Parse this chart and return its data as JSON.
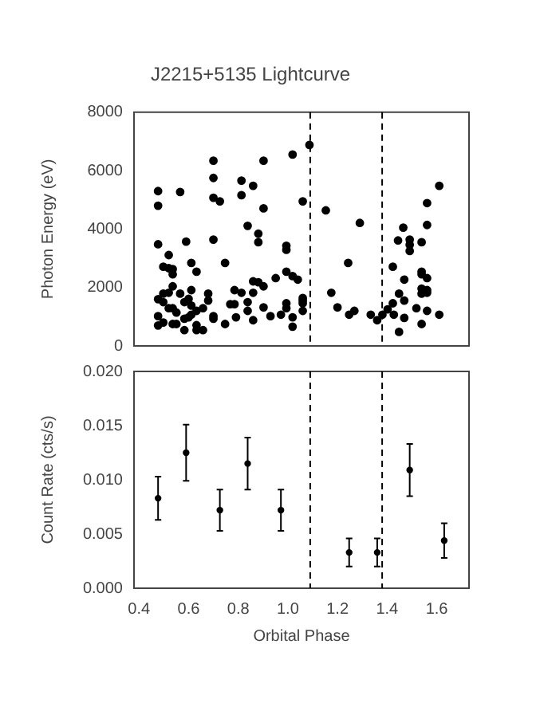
{
  "chart_data": [
    {
      "type": "scatter",
      "title": "J2215+5135 Lightcurve",
      "ylabel": "Photon Energy (eV)",
      "xlim": [
        0.38,
        1.73
      ],
      "xticks": [
        0.4,
        0.6,
        0.8,
        1.0,
        1.2,
        1.4,
        1.6
      ],
      "ylim": [
        0,
        8000
      ],
      "yticks": [
        0,
        2000,
        4000,
        6000,
        8000
      ],
      "tick_labels": "y",
      "grid": false,
      "legend": false,
      "marker": "circle",
      "ref_lines": [
        {
          "axis": "x",
          "value": 1.09,
          "color": "#000000",
          "line_style": "dashed"
        },
        {
          "axis": "x",
          "value": 1.38,
          "color": "#000000",
          "line_style": "dashed"
        }
      ],
      "series": [
        {
          "color": "#000000",
          "x": [
            0.477,
            0.477,
            0.477,
            0.477,
            0.477,
            0.477,
            0.498,
            0.498,
            0.498,
            0.498,
            0.52,
            0.52,
            0.52,
            0.52,
            0.536,
            0.536,
            0.536,
            0.536,
            0.536,
            0.551,
            0.551,
            0.566,
            0.566,
            0.583,
            0.583,
            0.583,
            0.59,
            0.6,
            0.6,
            0.611,
            0.611,
            0.611,
            0.611,
            0.632,
            0.632,
            0.632,
            0.632,
            0.658,
            0.658,
            0.679,
            0.679,
            0.7,
            0.7,
            0.7,
            0.7,
            0.7,
            0.7,
            0.726,
            0.747,
            0.747,
            0.768,
            0.785,
            0.785,
            0.791,
            0.813,
            0.813,
            0.813,
            0.838,
            0.838,
            0.838,
            0.86,
            0.86,
            0.86,
            0.86,
            0.881,
            0.881,
            0.881,
            0.902,
            0.902,
            0.902,
            0.902,
            0.93,
            0.951,
            0.972,
            0.994,
            0.994,
            0.994,
            0.994,
            0.994,
            1.019,
            1.019,
            1.019,
            1.019,
            1.04,
            1.06,
            1.06,
            1.06,
            1.06,
            1.06,
            1.087,
            1.153,
            1.175,
            1.2,
            1.243,
            1.247,
            1.268,
            1.29,
            1.334,
            1.36,
            1.381,
            1.402,
            1.423,
            1.423,
            1.427,
            1.444,
            1.448,
            1.448,
            1.465,
            1.469,
            1.469,
            1.469,
            1.491,
            1.491,
            1.491,
            1.518,
            1.539,
            1.539,
            1.539,
            1.539,
            1.539,
            1.539,
            1.561,
            1.561,
            1.561,
            1.561,
            1.561,
            1.561,
            1.61,
            1.61
          ],
          "values": [
            5300,
            4800,
            3480,
            1600,
            1020,
            700,
            2710,
            1790,
            1500,
            800,
            3110,
            2660,
            1820,
            1290,
            2630,
            2450,
            2040,
            1290,
            750,
            1140,
            750,
            5270,
            1790,
            1500,
            930,
            540,
            3570,
            980,
            1610,
            2840,
            1910,
            1380,
            1070,
            2540,
            1200,
            710,
            540,
            540,
            1290,
            1550,
            1790,
            6340,
            5750,
            5070,
            3640,
            1020,
            930,
            4950,
            2840,
            750,
            1430,
            1430,
            1910,
            980,
            5660,
            5160,
            1820,
            4110,
            1500,
            1200,
            5480,
            2210,
            1820,
            880,
            3840,
            3550,
            2180,
            6340,
            4710,
            2040,
            1320,
            1020,
            2320,
            1070,
            3430,
            3290,
            2540,
            1460,
            1290,
            6550,
            2390,
            980,
            660,
            2270,
            4950,
            1640,
            1550,
            1460,
            1200,
            6880,
            4640,
            1820,
            1320,
            2840,
            1070,
            1200,
            4210,
            1070,
            880,
            1070,
            1250,
            2710,
            1460,
            1070,
            3610,
            1790,
            480,
            4050,
            2270,
            1550,
            960,
            3640,
            3460,
            3250,
            1290,
            3550,
            2540,
            2450,
            1960,
            1790,
            750,
            4890,
            4140,
            2320,
            1910,
            1820,
            1200,
            5480,
            1070
          ]
        }
      ]
    },
    {
      "type": "scatter",
      "xlabel": "Orbital Phase",
      "ylabel": "Count Rate (cts/s)",
      "xlim": [
        0.38,
        1.73
      ],
      "xticks": [
        0.4,
        0.6,
        0.8,
        {
          "value": 1,
          "label": "1.0"
        },
        1.2,
        1.4,
        1.6
      ],
      "ylim": [
        0,
        0.02
      ],
      "marker": "circle",
      "yticks": [
        {
          "value": 0,
          "label": "0.000"
        },
        {
          "value": 0.005,
          "label": "0.005"
        },
        {
          "value": 0.01,
          "label": "0.010"
        },
        {
          "value": 0.015,
          "label": "0.015"
        },
        {
          "value": 0.02,
          "label": "0.020"
        }
      ],
      "grid": false,
      "legend": false,
      "ref_lines": [
        {
          "axis": "x",
          "value": 1.09,
          "color": "#000000",
          "line_style": "dashed"
        },
        {
          "axis": "x",
          "value": 1.38,
          "color": "#000000",
          "line_style": "dashed"
        }
      ],
      "series": [
        {
          "color": "#000000",
          "x": [
            0.477,
            0.59,
            0.726,
            0.838,
            0.972,
            1.247,
            1.36,
            1.491,
            1.63
          ],
          "values": [
            0.0083,
            0.0125,
            0.0072,
            0.0115,
            0.0072,
            0.0033,
            0.0033,
            0.0109,
            0.0044
          ],
          "errors": [
            0.002,
            0.0026,
            0.0019,
            0.0024,
            0.0019,
            0.0013,
            0.0013,
            0.0024,
            0.0016
          ]
        }
      ]
    }
  ]
}
